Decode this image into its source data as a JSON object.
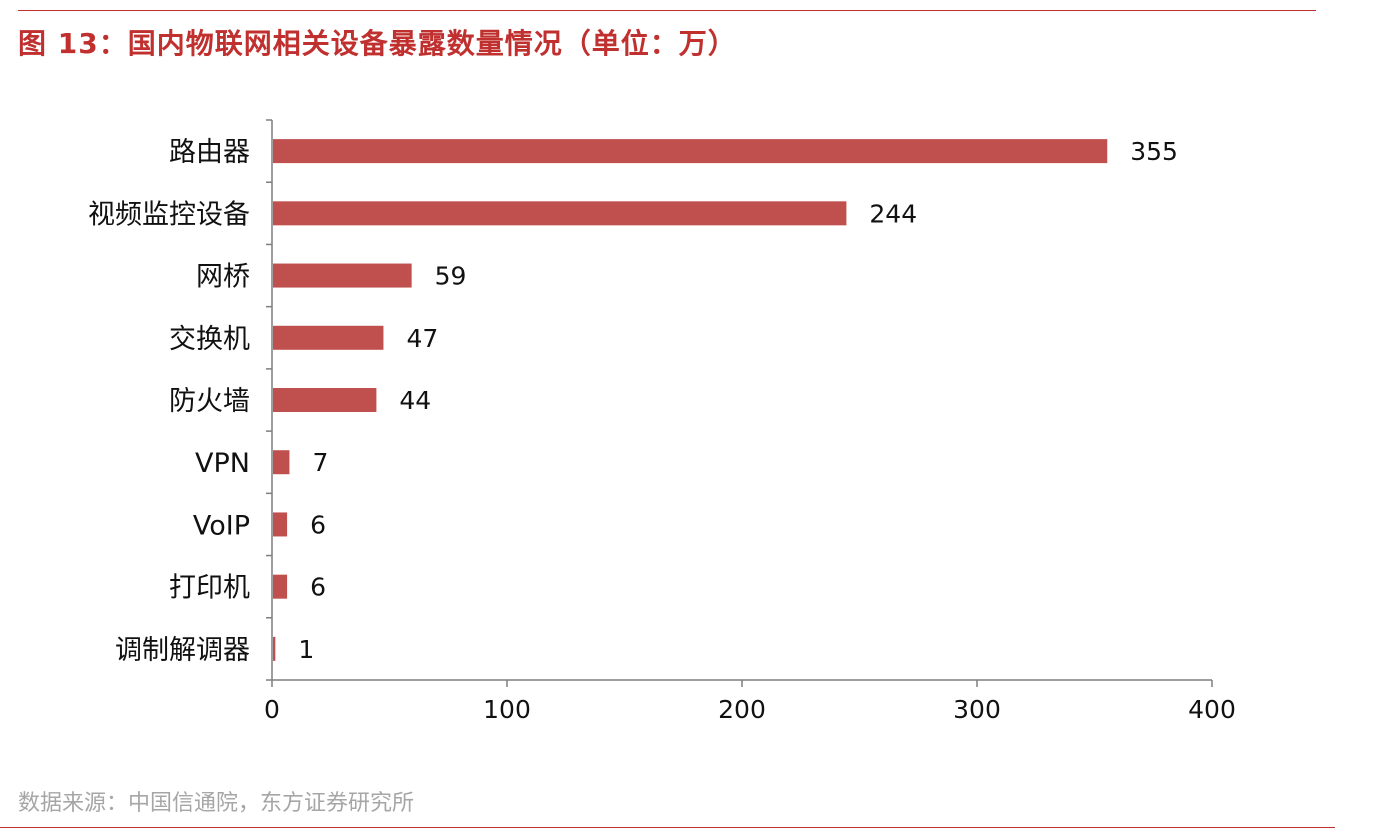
{
  "title": "图 13：国内物联网相关设备暴露数量情况（单位：万）",
  "source": "数据来源：中国信通院，东方证券研究所",
  "colors": {
    "accent": "#c0302f",
    "bar": "#c0504d",
    "source_text": "#a6a6a6"
  },
  "chart_data": {
    "type": "bar",
    "orientation": "horizontal",
    "categories": [
      "路由器",
      "视频监控设备",
      "网桥",
      "交换机",
      "防火墙",
      "VPN",
      "VoIP",
      "打印机",
      "调制解调器"
    ],
    "values": [
      355,
      244,
      59,
      47,
      44,
      7,
      6,
      6,
      1
    ],
    "xlim": [
      0,
      400
    ],
    "xticks": [
      0,
      100,
      200,
      300,
      400
    ],
    "grid": false,
    "legend": false
  }
}
